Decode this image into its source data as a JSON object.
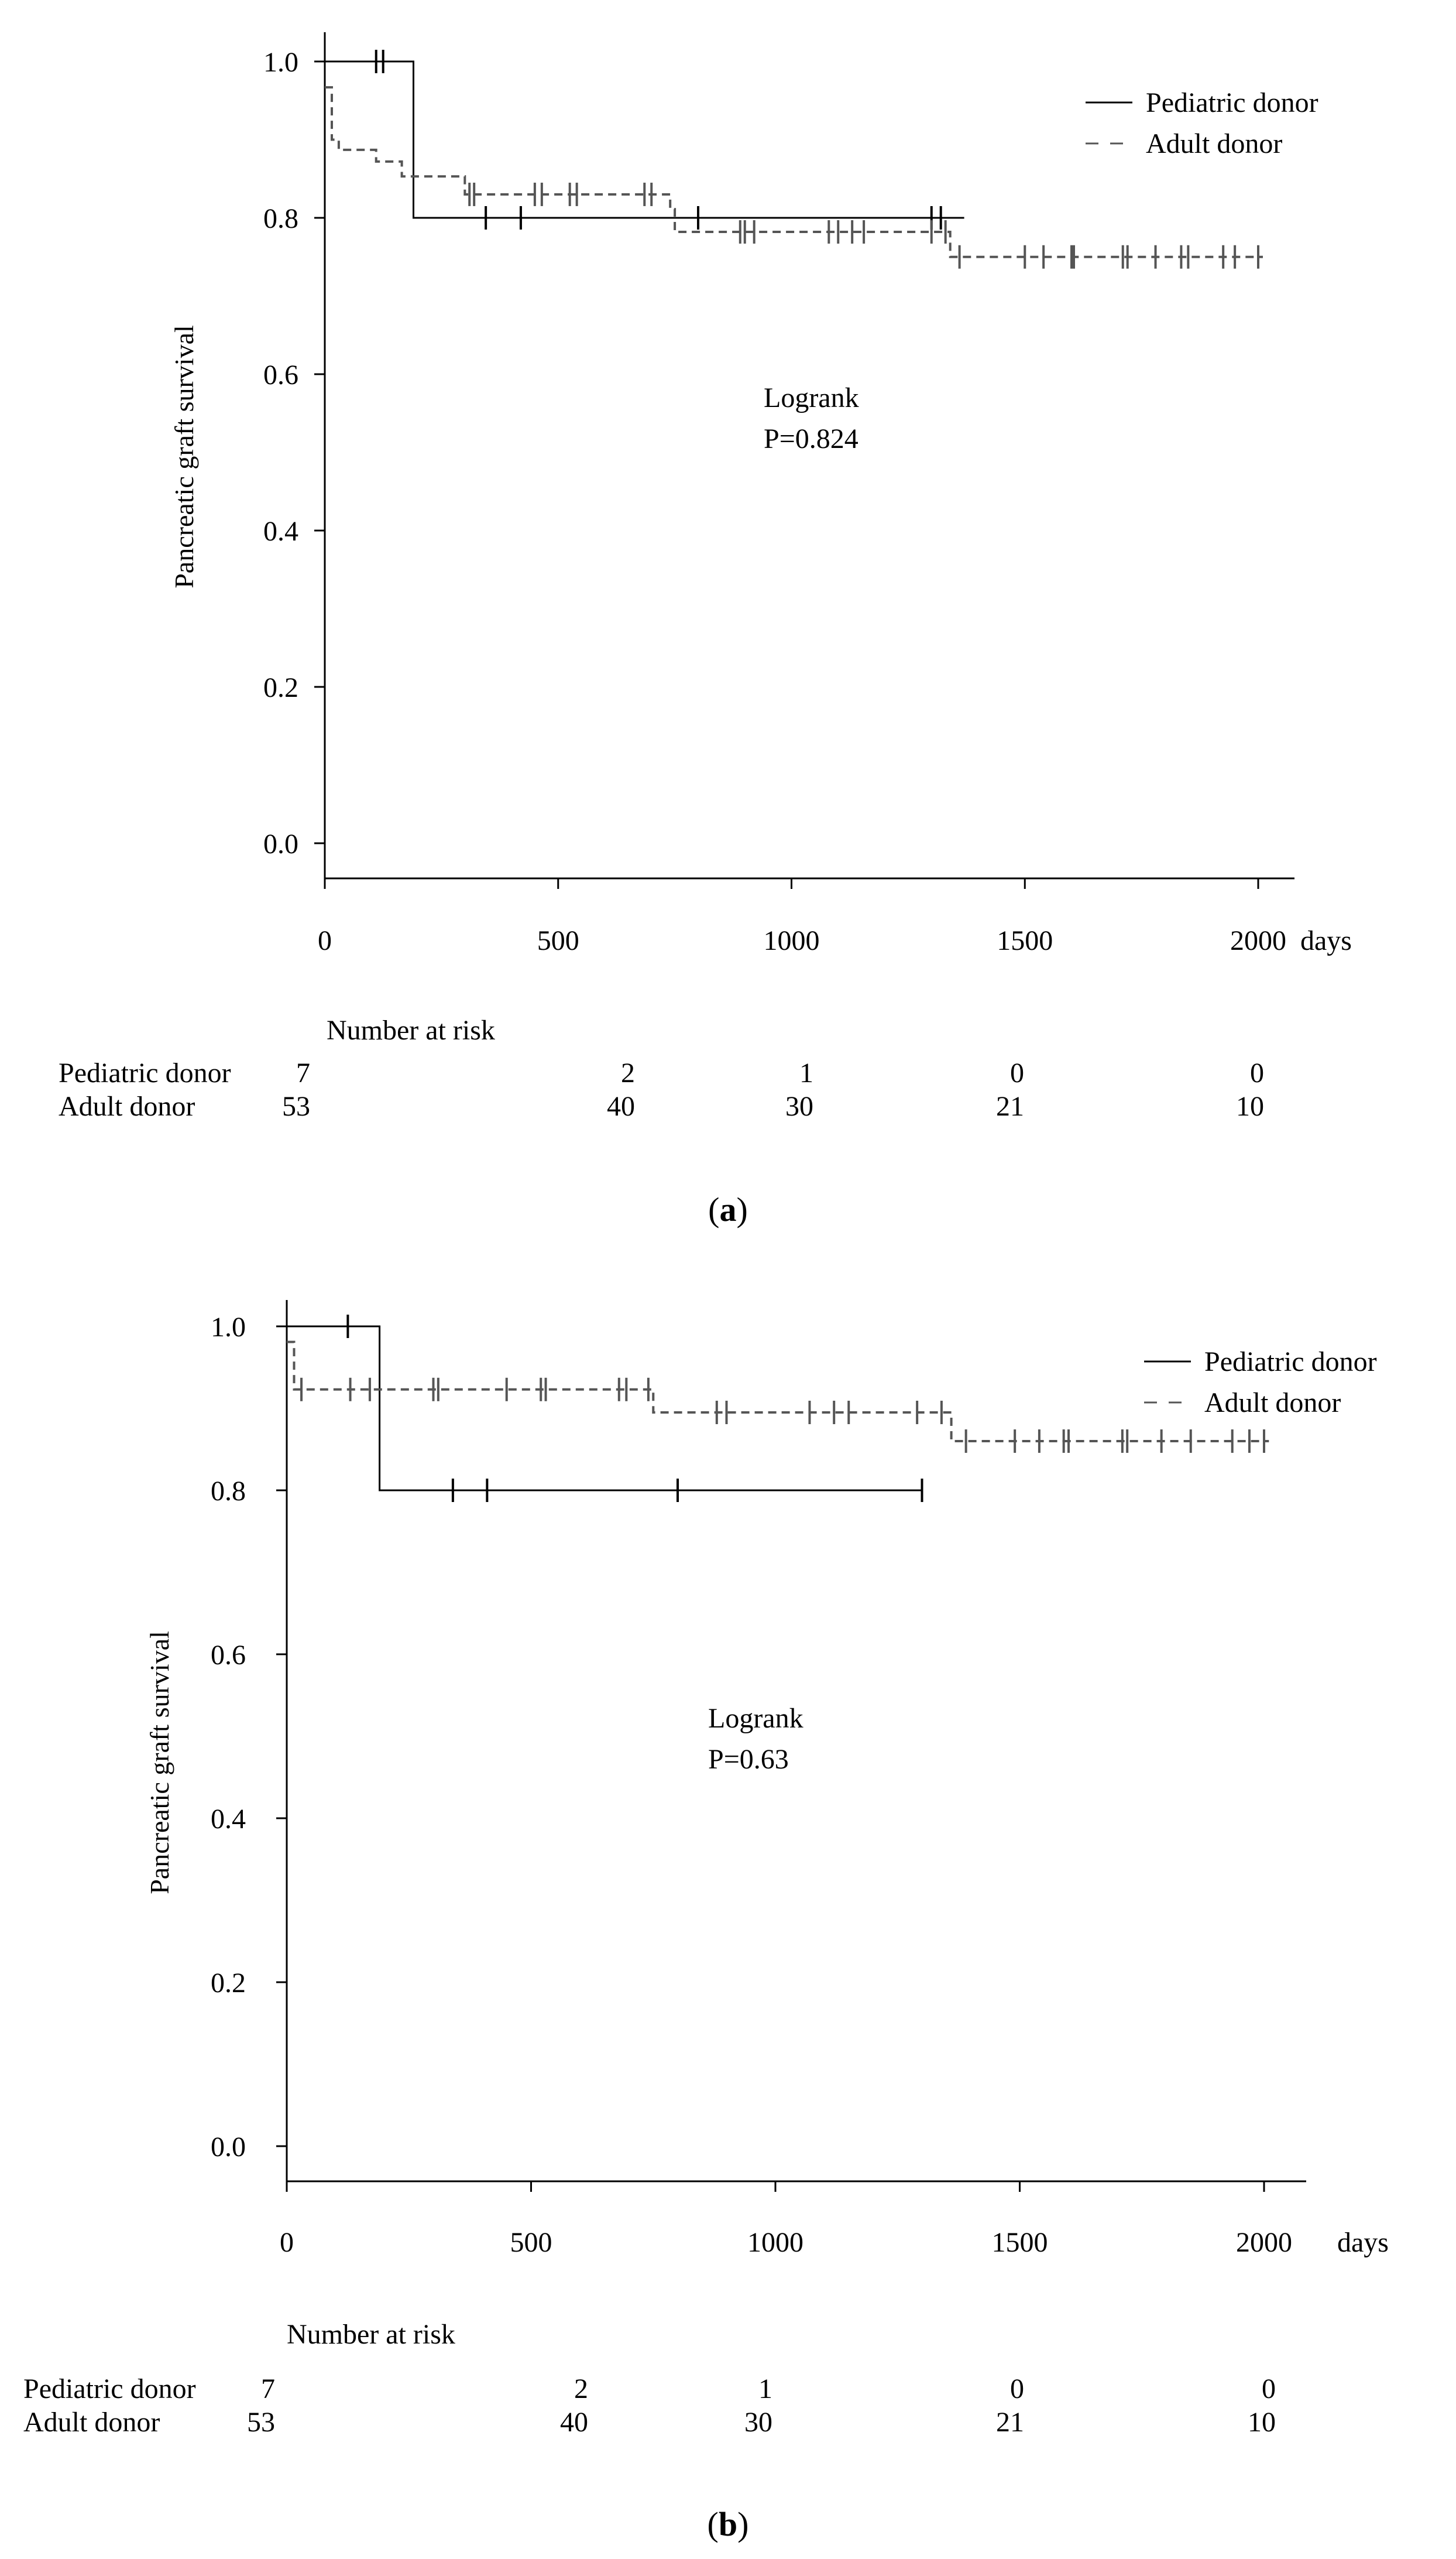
{
  "chart_data": [
    {
      "type": "line",
      "panel_label": "a",
      "ylabel": "Pancreatic graft survival",
      "x_unit": "days",
      "xlim": [
        0,
        2000
      ],
      "ylim": [
        0.0,
        1.0
      ],
      "x_ticks": [
        "0",
        "500",
        "1000",
        "1500",
        "2000"
      ],
      "y_ticks": [
        "0.0",
        "0.2",
        "0.4",
        "0.6",
        "0.8",
        "1.0"
      ],
      "grid": false,
      "legend_position": "top-right",
      "annotation": [
        "Logrank",
        "P=0.824"
      ],
      "series": [
        {
          "name": "Pediatric donor",
          "line_style": "solid",
          "steps": [
            [
              0,
              1.0
            ],
            [
              190,
              1.0
            ],
            [
              190,
              0.8
            ],
            [
              1370,
              0.8
            ]
          ],
          "censor_x": [
            110,
            125,
            345,
            420,
            800,
            1300,
            1320
          ]
        },
        {
          "name": "Adult donor",
          "line_style": "dashed",
          "steps": [
            [
              0,
              0.967
            ],
            [
              15,
              0.967
            ],
            [
              15,
              0.9
            ],
            [
              30,
              0.9
            ],
            [
              30,
              0.887
            ],
            [
              110,
              0.887
            ],
            [
              110,
              0.872
            ],
            [
              165,
              0.872
            ],
            [
              165,
              0.853
            ],
            [
              300,
              0.853
            ],
            [
              300,
              0.83
            ],
            [
              740,
              0.83
            ],
            [
              740,
              0.811
            ],
            [
              750,
              0.811
            ],
            [
              750,
              0.782
            ],
            [
              1340,
              0.782
            ],
            [
              1340,
              0.75
            ],
            [
              2010,
              0.75
            ]
          ],
          "censor_x": [
            310,
            320,
            450,
            465,
            525,
            540,
            685,
            700,
            890,
            900,
            920,
            1080,
            1100,
            1130,
            1155,
            1300,
            1330,
            1360,
            1500,
            1540,
            1600,
            1605,
            1710,
            1720,
            1780,
            1835,
            1850,
            1925,
            1950,
            2000
          ]
        }
      ],
      "risk_table": {
        "title": "Number at risk",
        "rows": [
          {
            "label": "Pediatric donor",
            "values": [
              "7",
              "2",
              "1",
              "0",
              "0"
            ]
          },
          {
            "label": "Adult donor",
            "values": [
              "53",
              "40",
              "30",
              "21",
              "10"
            ]
          }
        ]
      }
    },
    {
      "type": "line",
      "panel_label": "b",
      "ylabel": "Pancreatic graft survival",
      "x_unit": "days",
      "xlim": [
        0,
        2000
      ],
      "ylim": [
        0.0,
        1.0
      ],
      "x_ticks": [
        "0",
        "500",
        "1000",
        "1500",
        "2000"
      ],
      "y_ticks": [
        "0.0",
        "0.2",
        "0.4",
        "0.6",
        "0.8",
        "1.0"
      ],
      "grid": false,
      "legend_position": "top-right",
      "annotation": [
        "Logrank",
        "P=0.63"
      ],
      "series": [
        {
          "name": "Pediatric donor",
          "line_style": "solid",
          "steps": [
            [
              0,
              1.0
            ],
            [
              190,
              1.0
            ],
            [
              190,
              0.8
            ],
            [
              1300,
              0.8
            ]
          ],
          "censor_x": [
            125,
            340,
            410,
            800,
            1300
          ]
        },
        {
          "name": "Adult donor",
          "line_style": "dashed",
          "steps": [
            [
              0,
              0.981
            ],
            [
              15,
              0.981
            ],
            [
              15,
              0.923
            ],
            [
              750,
              0.923
            ],
            [
              750,
              0.895
            ],
            [
              1360,
              0.895
            ],
            [
              1360,
              0.86
            ],
            [
              2010,
              0.86
            ]
          ],
          "censor_x": [
            30,
            130,
            170,
            300,
            310,
            450,
            520,
            530,
            680,
            695,
            740,
            880,
            900,
            1070,
            1120,
            1150,
            1290,
            1340,
            1390,
            1490,
            1540,
            1590,
            1600,
            1710,
            1720,
            1790,
            1850,
            1935,
            1970,
            2000
          ]
        }
      ],
      "risk_table": {
        "title": "Number at risk",
        "rows": [
          {
            "label": "Pediatric donor",
            "values": [
              "7",
              "2",
              "1",
              "0",
              "0"
            ]
          },
          {
            "label": "Adult donor",
            "values": [
              "53",
              "40",
              "30",
              "21",
              "10"
            ]
          }
        ]
      }
    }
  ]
}
